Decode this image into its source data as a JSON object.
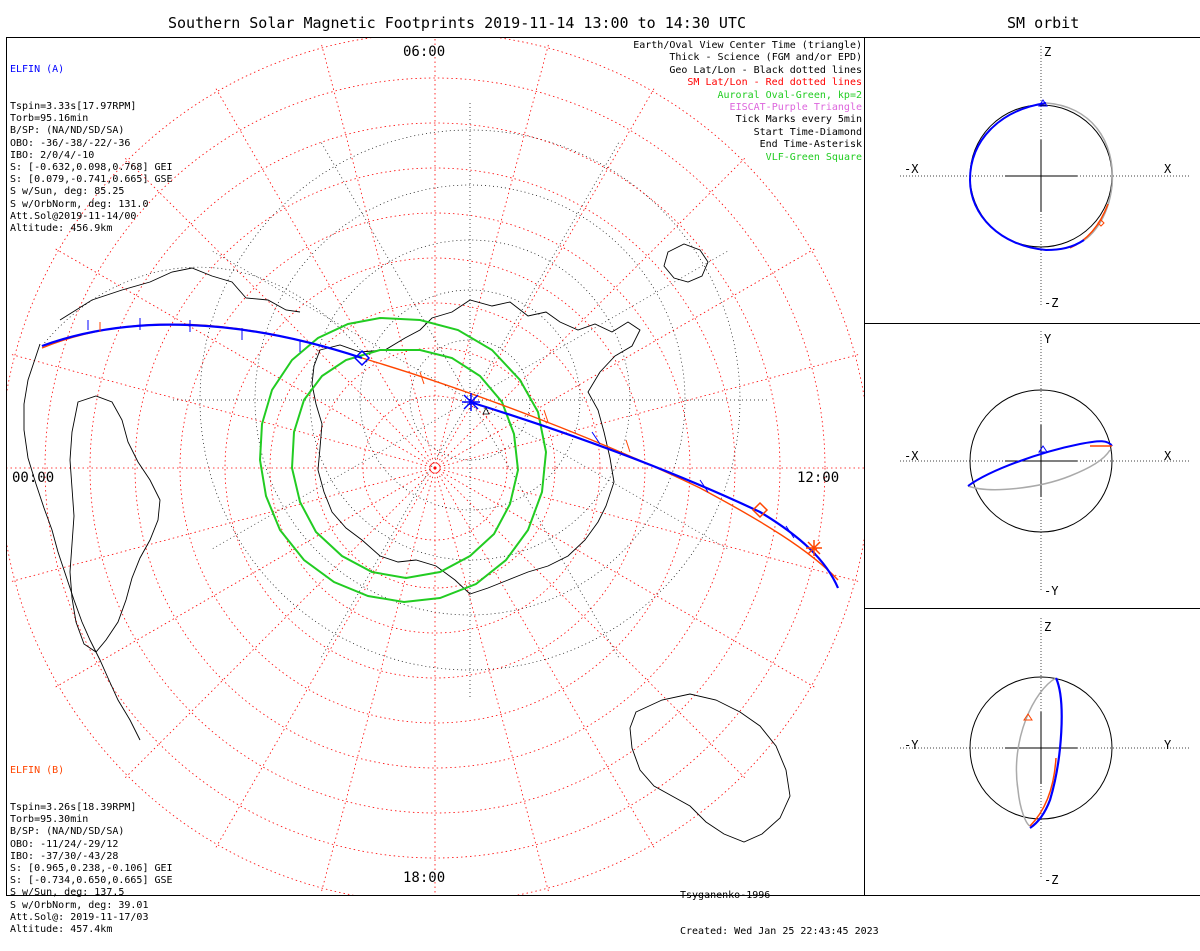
{
  "main_title": "Southern Solar Magnetic Footprints 2019-11-14 13:00 to 14:30 UTC",
  "orbit_title": "SM orbit",
  "elfin_a": {
    "name": "ELFIN (A)",
    "color": "#0000ff",
    "lines": [
      "Tspin=3.33s[17.97RPM]",
      "Torb=95.16min",
      "B/SP: (NA/ND/SD/SA)",
      "OBO: -36/-38/-22/-36",
      "IBO: 2/0/4/-10",
      "S: [-0.632,0.098,0.768] GEI",
      "S: [0.079,-0.741,0.665] GSE",
      "S w/Sun, deg: 85.25",
      "S w/OrbNorm, deg: 131.0",
      "Att.Sol@2019-11-14/00",
      "Altitude: 456.9km"
    ]
  },
  "elfin_b": {
    "name": "ELFIN (B)",
    "color": "#ff4500",
    "lines": [
      "Tspin=3.26s[18.39RPM]",
      "Torb=95.30min",
      "B/SP: (NA/ND/SD/SA)",
      "OBO: -11/24/-29/12",
      "IBO: -37/30/-43/28",
      "S: [0.965,0.238,-0.106] GEI",
      "S: [-0.734,0.650,0.665] GSE",
      "S w/Sun, deg: 137.5",
      "S w/OrbNorm, deg: 39.01",
      "Att.Sol@: 2019-11-17/03",
      "Altitude: 457.4km"
    ]
  },
  "legend": [
    {
      "text": "Earth/Oval View Center Time (triangle)",
      "color": "#000000"
    },
    {
      "text": "Thick - Science (FGM and/or EPD)",
      "color": "#000000"
    },
    {
      "text": "Geo Lat/Lon - Black dotted lines",
      "color": "#000000"
    },
    {
      "text": "SM Lat/Lon - Red dotted lines",
      "color": "#ff0000"
    },
    {
      "text": "Auroral Oval-Green, kp=2",
      "color": "#22cc22"
    },
    {
      "text": "EISCAT-Purple Triangle",
      "color": "#dd66dd"
    },
    {
      "text": "Tick Marks every 5min",
      "color": "#000000"
    },
    {
      "text": "Start Time-Diamond",
      "color": "#000000"
    },
    {
      "text": "End Time-Asterisk",
      "color": "#000000"
    },
    {
      "text": "VLF-Green Square",
      "color": "#22cc22"
    }
  ],
  "mlt_labels": {
    "top": "06:00",
    "left": "00:00",
    "right": "12:00",
    "bottom": "18:00"
  },
  "model": {
    "name": "Tsyganenko-1996",
    "created": "Created: Wed Jan 25 22:43:45 2023"
  },
  "orbit_panels": [
    {
      "top": "Z",
      "bottom": "-Z",
      "left": "-X",
      "right": "X"
    },
    {
      "top": "Y",
      "bottom": "-Y",
      "left": "-X",
      "right": "X"
    },
    {
      "top": "Z",
      "bottom": "-Z",
      "left": "-Y",
      "right": "Y"
    }
  ],
  "colors": {
    "elfin_a_track": "#0000ff",
    "elfin_b_track": "#ff4500",
    "sm_grid": "#ff0000",
    "auroral_oval": "#22cc22",
    "orbit_other": "#aaaaaa"
  }
}
